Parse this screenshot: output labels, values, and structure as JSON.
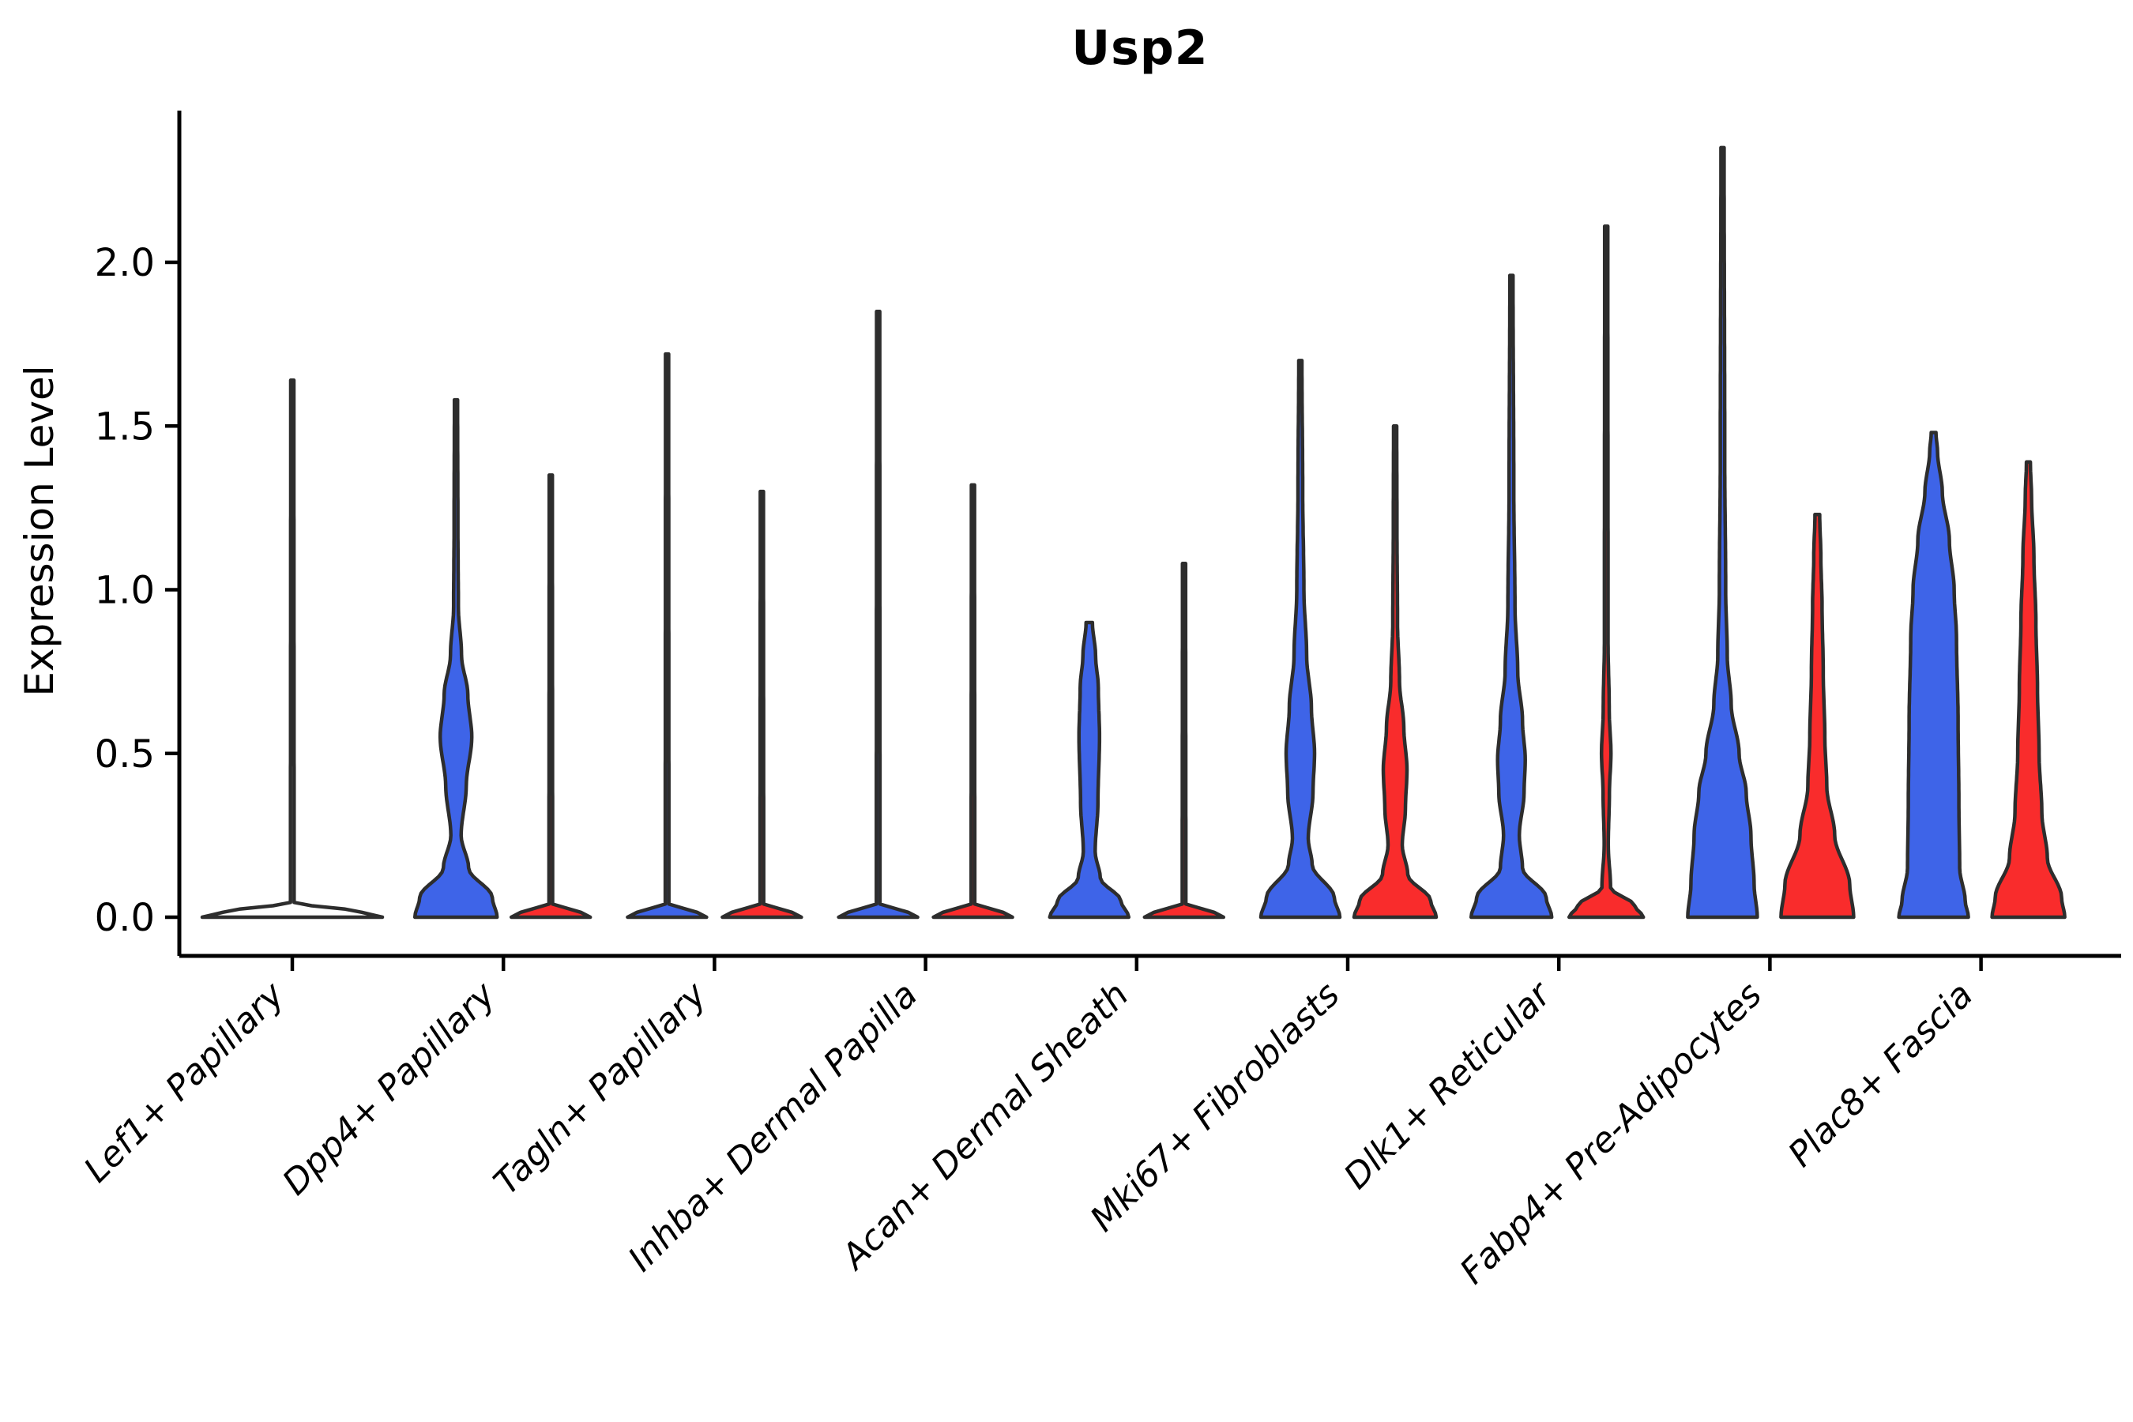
{
  "page": {
    "background": "#ffffff"
  },
  "chart_data": {
    "type": "violin",
    "title": "Usp2",
    "ylabel": "Expression Level",
    "xlabel": "",
    "grid": false,
    "legend": "none",
    "ylim": [
      -0.08,
      2.46
    ],
    "ytick_values": [
      0.0,
      0.5,
      1.0,
      1.5,
      2.0
    ],
    "ytick_labels": [
      "0.0",
      "0.5",
      "1.0",
      "1.5",
      "2.0"
    ],
    "categories": [
      "Lef1+ Papillary",
      "Dpp4+ Papillary",
      "Tagln+ Papillary",
      "Inhba+ Dermal Papilla",
      "Acan+ Dermal Sheath",
      "Mki67+ Fibroblasts",
      "Dlk1+ Reticular",
      "Fabp4+ Pre-Adipocytes",
      "Plac8+ Fascia"
    ],
    "colors": {
      "blue": "#3E64E8",
      "red": "#F92C2C",
      "outline": "#2d2d2d",
      "axis": "#000000"
    },
    "violins": [
      {
        "category": "Lef1+ Papillary",
        "group": "all",
        "fill": "none",
        "max_expression": 1.64,
        "profile": [
          [
            0,
            114
          ],
          [
            0.015,
            88
          ],
          [
            0.045,
            2.3
          ],
          [
            1.64,
            2
          ]
        ]
      },
      {
        "category": "Dpp4+ Papillary",
        "group": "blue",
        "fill": "blue",
        "max_expression": 1.58,
        "profile": [
          [
            0,
            52
          ],
          [
            0.06,
            46
          ],
          [
            0.15,
            16
          ],
          [
            0.25,
            6.5
          ],
          [
            0.4,
            13
          ],
          [
            0.55,
            20
          ],
          [
            0.68,
            15
          ],
          [
            0.8,
            7
          ],
          [
            0.95,
            3
          ],
          [
            1.2,
            2.4
          ],
          [
            1.58,
            2
          ]
        ]
      },
      {
        "category": "Dpp4+ Papillary",
        "group": "red",
        "fill": "red",
        "max_expression": 1.35,
        "profile": [
          [
            0,
            50
          ],
          [
            0.015,
            38
          ],
          [
            0.04,
            2.3
          ],
          [
            1.35,
            2
          ]
        ]
      },
      {
        "category": "Tagln+ Papillary",
        "group": "blue",
        "fill": "blue",
        "max_expression": 1.72,
        "profile": [
          [
            0,
            50
          ],
          [
            0.015,
            38
          ],
          [
            0.04,
            2.3
          ],
          [
            1.72,
            2
          ]
        ]
      },
      {
        "category": "Tagln+ Papillary",
        "group": "red",
        "fill": "red",
        "max_expression": 1.3,
        "profile": [
          [
            0,
            50
          ],
          [
            0.015,
            38
          ],
          [
            0.04,
            2.3
          ],
          [
            1.3,
            2
          ]
        ]
      },
      {
        "category": "Inhba+ Dermal Papilla",
        "group": "blue",
        "fill": "blue",
        "max_expression": 1.85,
        "profile": [
          [
            0,
            50
          ],
          [
            0.015,
            38
          ],
          [
            0.04,
            2.3
          ],
          [
            1.85,
            2
          ]
        ]
      },
      {
        "category": "Inhba+ Dermal Papilla",
        "group": "red",
        "fill": "red",
        "max_expression": 1.32,
        "profile": [
          [
            0,
            50
          ],
          [
            0.015,
            38
          ],
          [
            0.04,
            2.3
          ],
          [
            1.32,
            2
          ]
        ]
      },
      {
        "category": "Acan+ Dermal Sheath",
        "group": "blue",
        "fill": "blue",
        "max_expression": 0.9,
        "profile": [
          [
            0,
            50
          ],
          [
            0.05,
            40
          ],
          [
            0.12,
            14
          ],
          [
            0.2,
            7.5
          ],
          [
            0.35,
            11
          ],
          [
            0.55,
            13
          ],
          [
            0.7,
            11.5
          ],
          [
            0.8,
            8
          ],
          [
            0.9,
            4
          ]
        ]
      },
      {
        "category": "Acan+ Dermal Sheath",
        "group": "red",
        "fill": "red",
        "max_expression": 1.08,
        "profile": [
          [
            0,
            50
          ],
          [
            0.015,
            38
          ],
          [
            0.04,
            2.3
          ],
          [
            1.08,
            2
          ]
        ]
      },
      {
        "category": "Mki67+ Fibroblasts",
        "group": "blue",
        "fill": "blue",
        "max_expression": 1.7,
        "profile": [
          [
            0,
            50
          ],
          [
            0.06,
            43
          ],
          [
            0.16,
            15
          ],
          [
            0.24,
            10
          ],
          [
            0.38,
            16
          ],
          [
            0.5,
            18
          ],
          [
            0.64,
            14
          ],
          [
            0.8,
            8
          ],
          [
            1.0,
            4.5
          ],
          [
            1.3,
            3
          ],
          [
            1.7,
            2
          ]
        ]
      },
      {
        "category": "Mki67+ Fibroblasts",
        "group": "red",
        "fill": "red",
        "max_expression": 1.5,
        "profile": [
          [
            0,
            52
          ],
          [
            0.05,
            45
          ],
          [
            0.13,
            16
          ],
          [
            0.22,
            9
          ],
          [
            0.33,
            13
          ],
          [
            0.45,
            15
          ],
          [
            0.58,
            11
          ],
          [
            0.72,
            5.5
          ],
          [
            0.9,
            3
          ],
          [
            1.2,
            2.3
          ],
          [
            1.5,
            2
          ]
        ]
      },
      {
        "category": "Dlk1+ Reticular",
        "group": "blue",
        "fill": "blue",
        "max_expression": 1.96,
        "profile": [
          [
            0,
            51
          ],
          [
            0.06,
            44
          ],
          [
            0.15,
            14
          ],
          [
            0.25,
            10
          ],
          [
            0.38,
            16
          ],
          [
            0.48,
            17.5
          ],
          [
            0.6,
            14
          ],
          [
            0.75,
            8
          ],
          [
            0.95,
            4.5
          ],
          [
            1.3,
            3
          ],
          [
            1.96,
            2
          ]
        ]
      },
      {
        "category": "Dlk1+ Reticular",
        "group": "red",
        "fill": "red",
        "max_expression": 2.11,
        "profile": [
          [
            0,
            47
          ],
          [
            0.035,
            36
          ],
          [
            0.09,
            5.5
          ],
          [
            0.22,
            2.6
          ],
          [
            0.38,
            4
          ],
          [
            0.5,
            6
          ],
          [
            0.63,
            3.8
          ],
          [
            0.85,
            2.3
          ],
          [
            2.11,
            2
          ]
        ]
      },
      {
        "category": "Fabp4+ Pre-Adipocytes",
        "group": "blue",
        "fill": "blue",
        "max_expression": 2.35,
        "profile": [
          [
            0,
            44
          ],
          [
            0.1,
            40
          ],
          [
            0.25,
            36
          ],
          [
            0.38,
            30
          ],
          [
            0.5,
            21
          ],
          [
            0.65,
            11
          ],
          [
            0.8,
            6
          ],
          [
            1.0,
            4
          ],
          [
            1.4,
            2.8
          ],
          [
            2.35,
            2
          ]
        ]
      },
      {
        "category": "Fabp4+ Pre-Adipocytes",
        "group": "red",
        "fill": "red",
        "max_expression": 1.23,
        "profile": [
          [
            0,
            46
          ],
          [
            0.1,
            41
          ],
          [
            0.25,
            22
          ],
          [
            0.4,
            12
          ],
          [
            0.55,
            9.5
          ],
          [
            0.75,
            7.5
          ],
          [
            0.95,
            6
          ],
          [
            1.1,
            4.5
          ],
          [
            1.23,
            3
          ]
        ]
      },
      {
        "category": "Plac8+ Fascia",
        "group": "blue",
        "fill": "blue",
        "max_expression": 1.48,
        "profile": [
          [
            0,
            44
          ],
          [
            0.05,
            40
          ],
          [
            0.15,
            33
          ],
          [
            0.35,
            32
          ],
          [
            0.6,
            31
          ],
          [
            0.85,
            29
          ],
          [
            1.0,
            26
          ],
          [
            1.15,
            20
          ],
          [
            1.3,
            11
          ],
          [
            1.42,
            5
          ],
          [
            1.48,
            3
          ]
        ]
      },
      {
        "category": "Plac8+ Fascia",
        "group": "red",
        "fill": "red",
        "max_expression": 1.39,
        "profile": [
          [
            0,
            46
          ],
          [
            0.06,
            42
          ],
          [
            0.18,
            24
          ],
          [
            0.32,
            17
          ],
          [
            0.5,
            13.5
          ],
          [
            0.7,
            11.5
          ],
          [
            0.9,
            9.5
          ],
          [
            1.1,
            7
          ],
          [
            1.28,
            4
          ],
          [
            1.39,
            2.5
          ]
        ]
      }
    ]
  }
}
